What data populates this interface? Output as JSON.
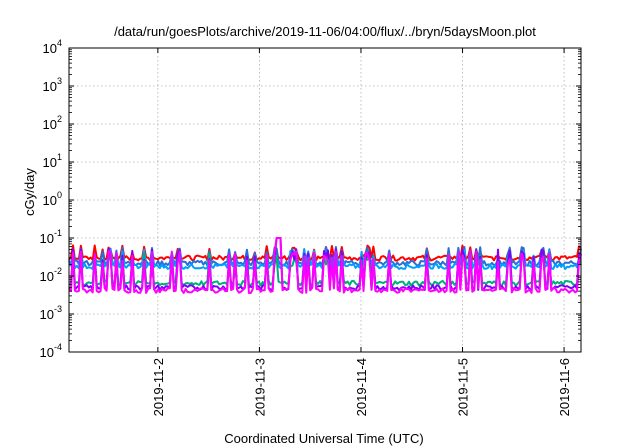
{
  "chart_data": {
    "type": "line",
    "title": "/data/run/goesPlots/archive/2019-11-06/04:00/flux/../bryn/5daysMoon.plot",
    "xlabel": "Coordinated Universal Time (UTC)",
    "ylabel": "cGy/day",
    "y_scale": "log",
    "ylim": [
      0.0001,
      10000
    ],
    "y_ticks": [
      {
        "base": "10",
        "exp": "-4"
      },
      {
        "base": "10",
        "exp": "-3"
      },
      {
        "base": "10",
        "exp": "-2"
      },
      {
        "base": "10",
        "exp": "-1"
      },
      {
        "base": "10",
        "exp": "0"
      },
      {
        "base": "10",
        "exp": "1"
      },
      {
        "base": "10",
        "exp": "2"
      },
      {
        "base": "10",
        "exp": "3"
      },
      {
        "base": "10",
        "exp": "4"
      }
    ],
    "xlim": [
      "2019-11-01T03:00",
      "2019-11-06T04:00"
    ],
    "x_ticks": [
      {
        "label": "2019-11-2",
        "date": "2019-11-02T00:00"
      },
      {
        "label": "2019-11-3",
        "date": "2019-11-03T00:00"
      },
      {
        "label": "2019-11-4",
        "date": "2019-11-04T00:00"
      },
      {
        "label": "2019-11-5",
        "date": "2019-11-05T00:00"
      },
      {
        "label": "2019-11-6",
        "date": "2019-11-06T00:00"
      }
    ],
    "grid": true,
    "series": [
      {
        "color": "#ff0000",
        "base": 0.03,
        "spike": 0.05
      },
      {
        "color": "#2a6fd6",
        "base": 0.022,
        "spike": 0.045
      },
      {
        "color": "#00a0ff",
        "base": 0.018,
        "spike": 0.04
      },
      {
        "color": "#00b07a",
        "base": 0.0065,
        "spike": 0.03
      },
      {
        "color": "#8000ff",
        "base": 0.005,
        "spike": 0.04
      },
      {
        "color": "#ff00ff",
        "base": 0.0042,
        "spike": 0.035
      }
    ],
    "peak": {
      "date": "2019-11-03T04:30",
      "value": 0.1
    }
  }
}
